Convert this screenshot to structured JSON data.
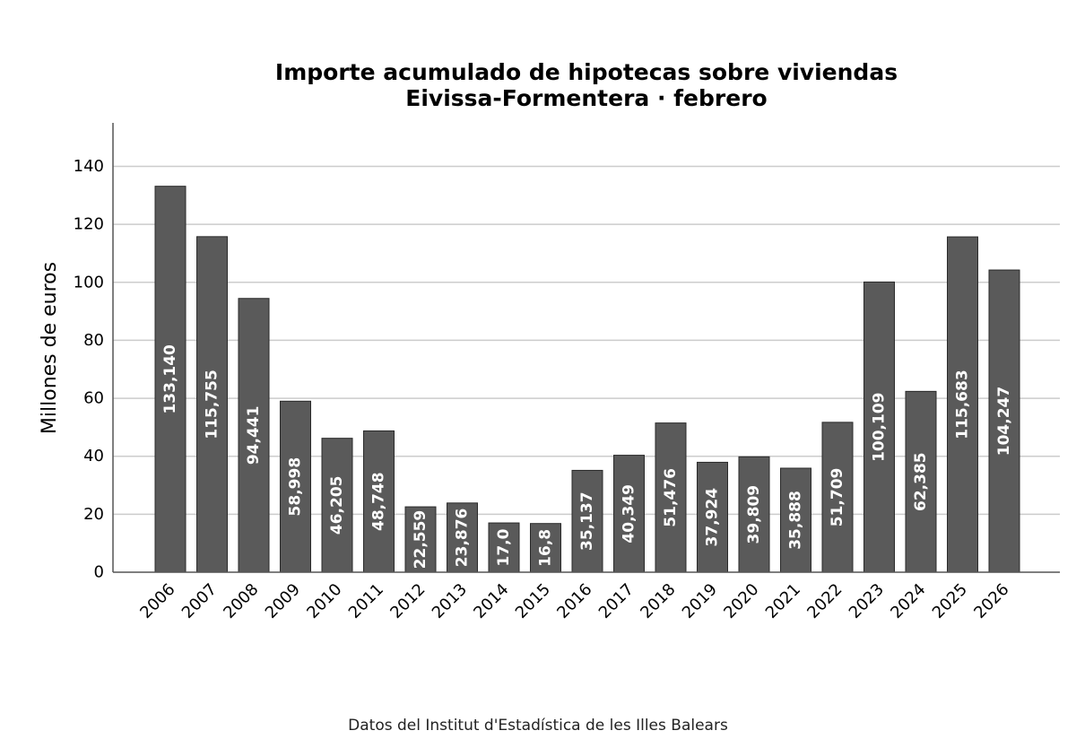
{
  "chart_data": {
    "type": "bar",
    "title": [
      "Importe acumulado de hipotecas sobre viviendas",
      "Eivissa-Formentera · febrero"
    ],
    "ylabel": "Millones de euros",
    "xlabel": "",
    "ylim": [
      0,
      155
    ],
    "yticks": [
      0,
      20,
      40,
      60,
      80,
      100,
      120,
      140
    ],
    "grid": true,
    "categories": [
      "2006",
      "2007",
      "2008",
      "2009",
      "2010",
      "2011",
      "2012",
      "2013",
      "2014",
      "2015",
      "2016",
      "2017",
      "2018",
      "2019",
      "2020",
      "2021",
      "2022",
      "2023",
      "2024",
      "2025",
      "2026"
    ],
    "values": [
      133.14,
      115.755,
      94.441,
      58.998,
      46.205,
      48.748,
      22.559,
      23.876,
      17.0,
      16.8,
      35.137,
      40.349,
      51.476,
      37.924,
      39.809,
      35.888,
      51.709,
      100.109,
      62.385,
      115.683,
      104.247
    ],
    "value_labels": [
      "133,140",
      "115,755",
      "94,441",
      "58,998",
      "46,205",
      "48,748",
      "22,559",
      "23,876",
      "17,0",
      "16,8",
      "35,137",
      "40,349",
      "51,476",
      "37,924",
      "39,809",
      "35,888",
      "51,709",
      "100,109",
      "62,385",
      "115,683",
      "104,247"
    ],
    "colors": {
      "bar": "#5a5a5a",
      "bar_edge": "#2a2a2a",
      "grid": "#cccccc",
      "axis": "#555555"
    }
  },
  "footer": {
    "source": "Datos del Institut d'Estadística de les Illes Balears"
  }
}
